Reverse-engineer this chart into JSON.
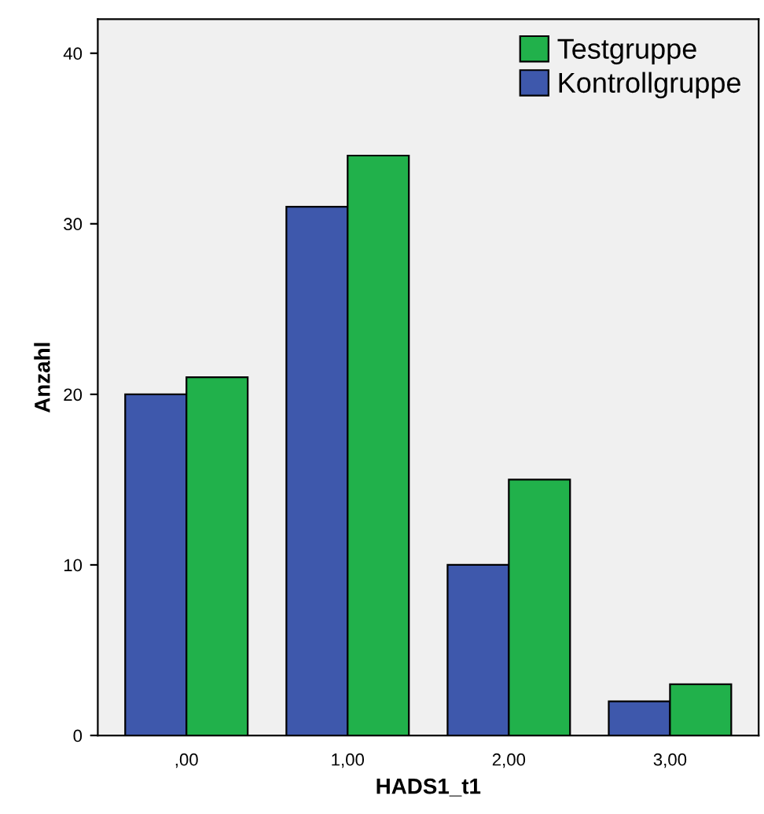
{
  "chart_data": {
    "type": "bar",
    "xlabel": "HADS1_t1",
    "ylabel": "Anzahl",
    "categories": [
      ",00",
      "1,00",
      "2,00",
      "3,00"
    ],
    "series": [
      {
        "name": "Kontrollgruppe",
        "color": "#3e58ac",
        "values": [
          20,
          31,
          10,
          2
        ]
      },
      {
        "name": "Testgruppe",
        "color": "#21b14b",
        "values": [
          21,
          34,
          15,
          3
        ]
      }
    ],
    "ylim": [
      0,
      42
    ],
    "yticks": [
      0,
      10,
      20,
      30,
      40
    ],
    "grid": false,
    "legend": "top right"
  }
}
